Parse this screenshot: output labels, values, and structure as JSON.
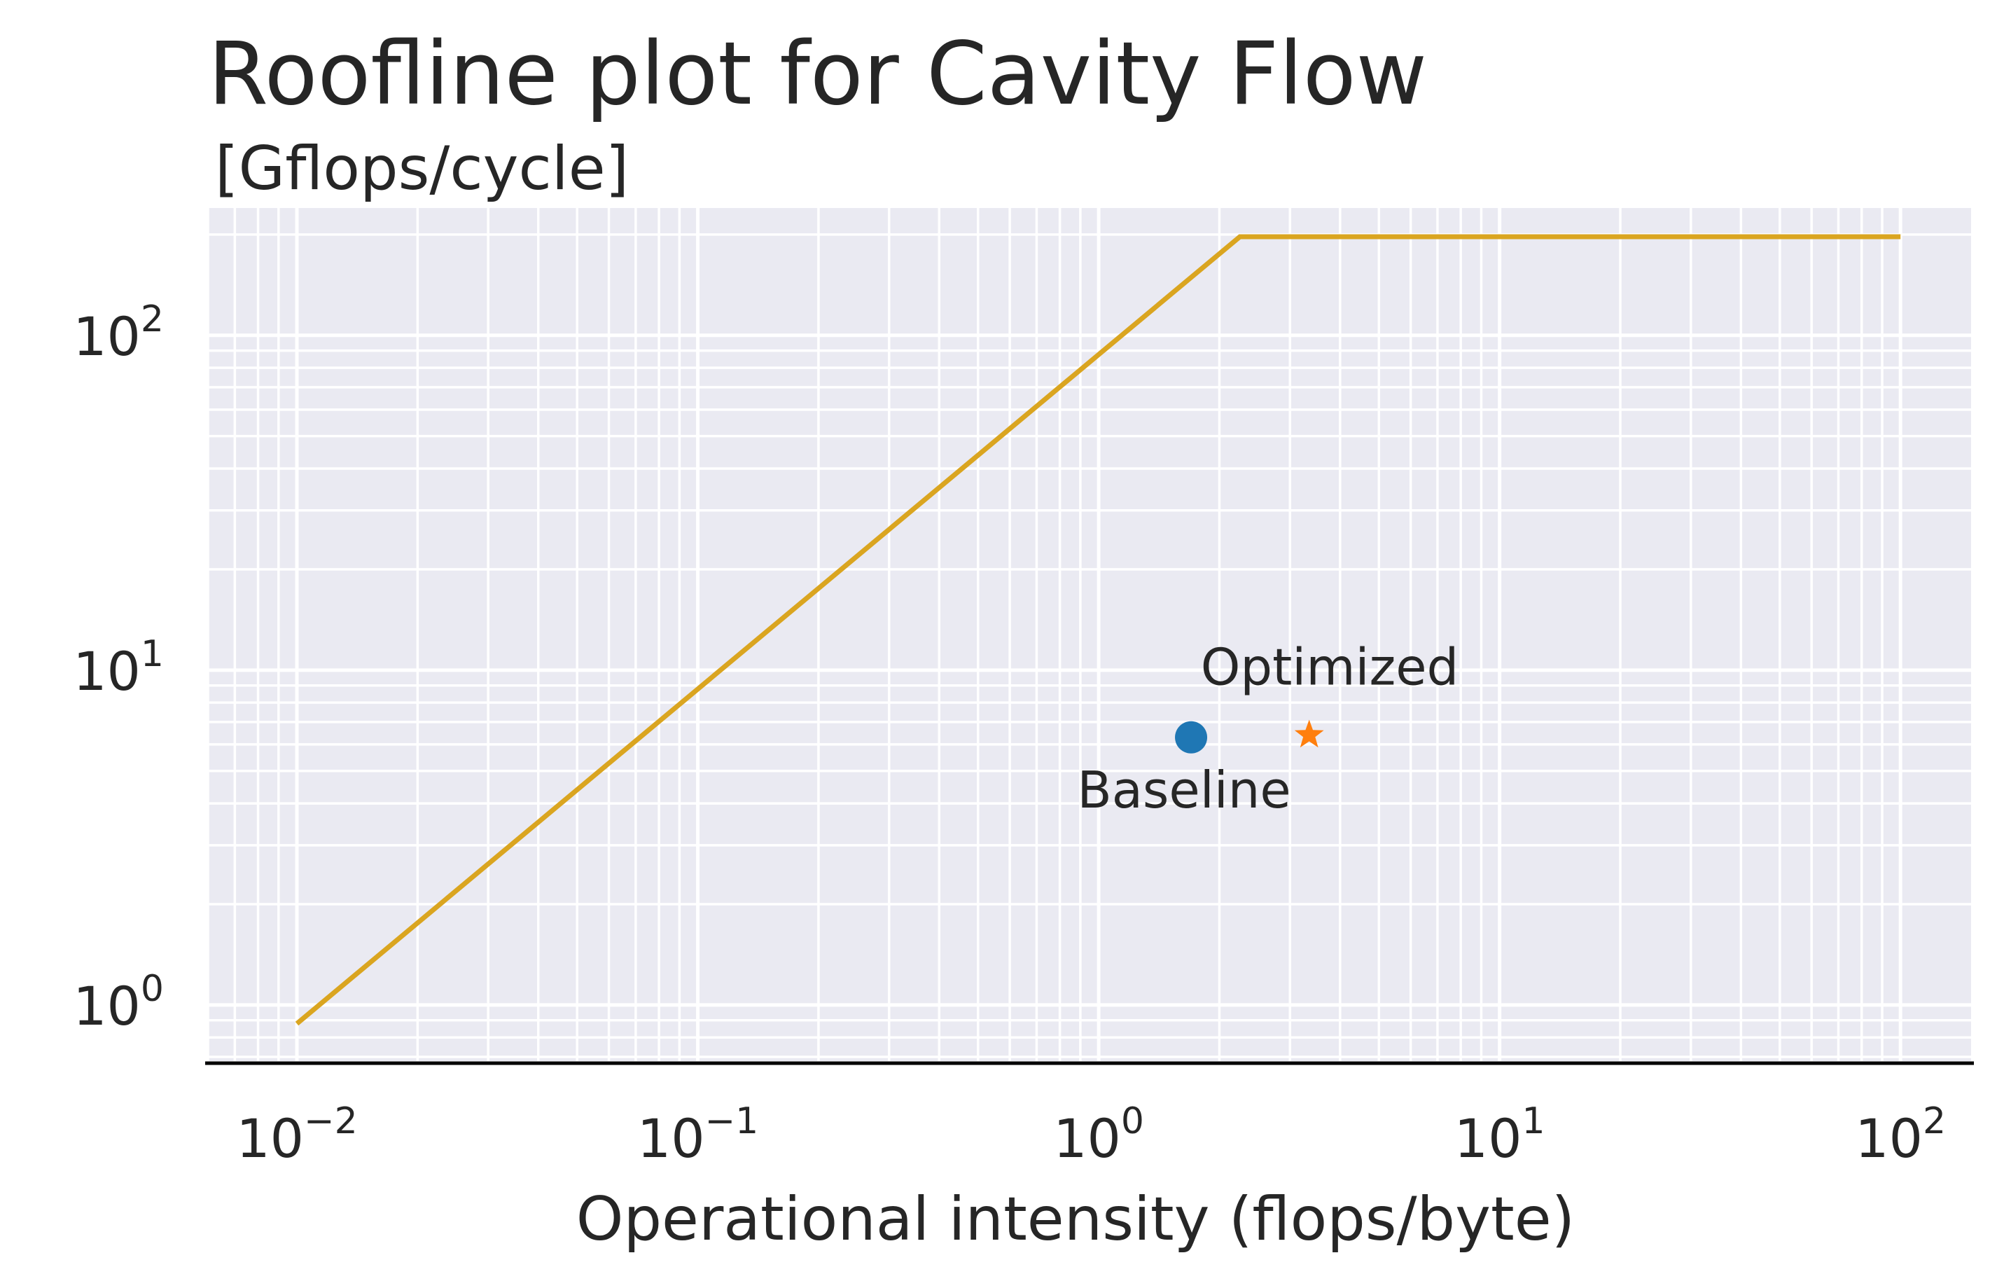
{
  "chart_data": {
    "type": "line",
    "title": "Roofline plot for Cavity Flow",
    "subtitle": "[Gflops/cycle]",
    "xlabel": "Operational intensity (flops/byte)",
    "ylabel": "",
    "xscale": "log",
    "yscale": "log",
    "xlim": [
      0.006,
      150
    ],
    "ylim": [
      0.68,
      240
    ],
    "xticks": [
      {
        "base": "10",
        "exp": "−2",
        "value": 0.01
      },
      {
        "base": "10",
        "exp": "−1",
        "value": 0.1
      },
      {
        "base": "10",
        "exp": "0",
        "value": 1
      },
      {
        "base": "10",
        "exp": "1",
        "value": 10
      },
      {
        "base": "10",
        "exp": "2",
        "value": 100
      }
    ],
    "yticks": [
      {
        "base": "10",
        "exp": "0",
        "value": 1
      },
      {
        "base": "10",
        "exp": "1",
        "value": 10
      },
      {
        "base": "10",
        "exp": "2",
        "value": 100
      }
    ],
    "grid": true,
    "minor_grid": true,
    "background": "#eaeaf2",
    "series": [
      {
        "kind": "line",
        "color": "#daa520",
        "x": [
          0.01,
          2.25,
          100
        ],
        "y": [
          0.88,
          197,
          197
        ]
      },
      {
        "kind": "point",
        "marker": "circle",
        "color": "#1f77b4",
        "x": [
          1.7
        ],
        "y": [
          6.3
        ],
        "annotation": "Baseline"
      },
      {
        "kind": "point",
        "marker": "star",
        "color": "#ff7f0e",
        "x": [
          3.35
        ],
        "y": [
          6.4
        ],
        "annotation": "Optimized"
      }
    ]
  }
}
